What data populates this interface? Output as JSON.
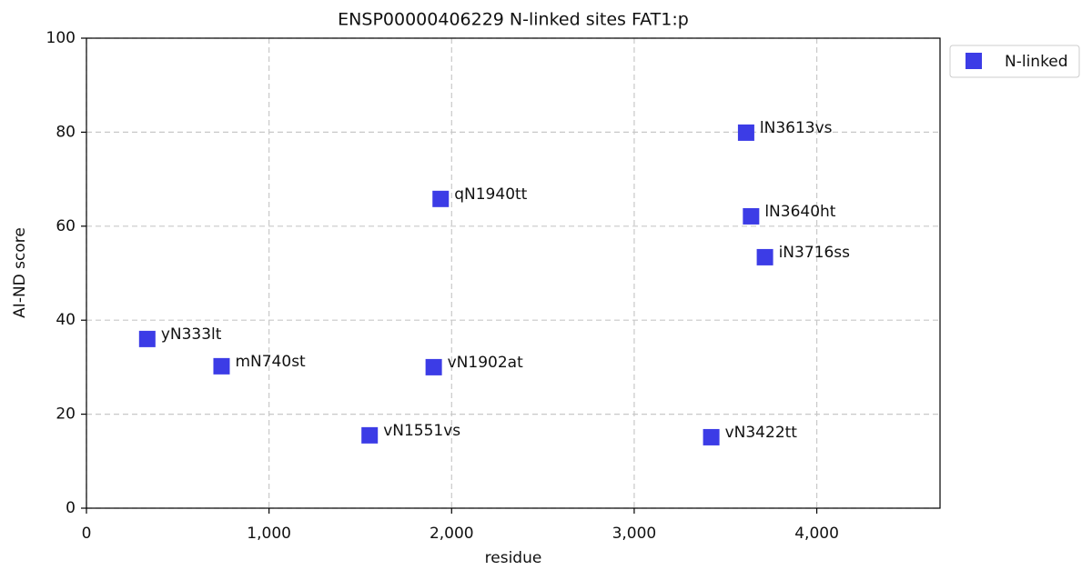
{
  "chart_data": {
    "type": "scatter",
    "title": "ENSP00000406229 N-linked sites FAT1:p",
    "x_label": "residue",
    "y_label": "AI-ND score",
    "series": [
      {
        "name": "N-linked",
        "color": "#3c3ce6",
        "marker": "square",
        "x": [
          333,
          740,
          1551,
          1902,
          1940,
          3422,
          3613,
          3640,
          3716
        ],
        "y": [
          36,
          30.2,
          15.5,
          30,
          65.8,
          15.1,
          79.9,
          62.1,
          53.4
        ],
        "labels": [
          "yN333lt",
          "mN740st",
          "vN1551vs",
          "vN1902at",
          "qN1940tt",
          "vN3422tt",
          "lN3613vs",
          "lN3640ht",
          "iN3716ss"
        ]
      }
    ],
    "xlim": [
      0,
      4675
    ],
    "ylim": [
      0,
      100
    ],
    "xticks": [
      0,
      {
        "value": 1000,
        "label": "1,000"
      },
      {
        "value": 2000,
        "label": "2,000"
      },
      {
        "value": 3000,
        "label": "3,000"
      },
      {
        "value": 4000,
        "label": "4,000"
      }
    ],
    "yticks": [
      0,
      20,
      40,
      60,
      80,
      100
    ],
    "grid": true,
    "legend": "outside-right"
  }
}
